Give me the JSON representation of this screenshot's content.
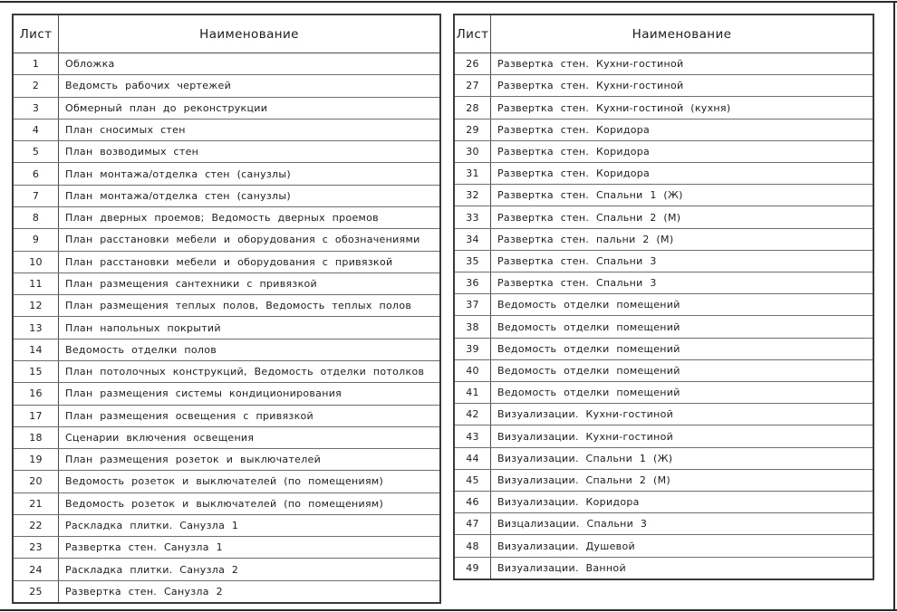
{
  "tables": [
    {
      "columns": {
        "sheet": "Лист",
        "name": "Наименование"
      },
      "rows": [
        {
          "num": "1",
          "name": "Обложка"
        },
        {
          "num": "2",
          "name": "Ведомсть рабочих чертежей"
        },
        {
          "num": "3",
          "name": "Обмерный план до реконструкции"
        },
        {
          "num": "4",
          "name": "План сносимых стен"
        },
        {
          "num": "5",
          "name": "План возводимых стен"
        },
        {
          "num": "6",
          "name": "План монтажа/отделка стен (санузлы)"
        },
        {
          "num": "7",
          "name": "План монтажа/отделка стен (санузлы)"
        },
        {
          "num": "8",
          "name": "План дверных проемов; Ведомость дверных проемов"
        },
        {
          "num": "9",
          "name": "План расстановки мебели и оборудования с обозначениями"
        },
        {
          "num": "10",
          "name": "План расстановки мебели и оборудования с привязкой"
        },
        {
          "num": "11",
          "name": "План размещения сантехники с привязкой"
        },
        {
          "num": "12",
          "name": "План размещения теплых полов, Ведомость теплых полов"
        },
        {
          "num": "13",
          "name": "План напольных покрытий"
        },
        {
          "num": "14",
          "name": "Ведомость отделки полов"
        },
        {
          "num": "15",
          "name": "План потолочных конструкций, Ведомость отделки потолков"
        },
        {
          "num": "16",
          "name": "План размещения системы кондиционирования"
        },
        {
          "num": "17",
          "name": "План размещения освещения с привязкой"
        },
        {
          "num": "18",
          "name": "Сценарии включения освещения"
        },
        {
          "num": "19",
          "name": "План размещения розеток и выключателей"
        },
        {
          "num": "20",
          "name": "Ведомость розеток и выключателей (по помещениям)"
        },
        {
          "num": "21",
          "name": "Ведомость розеток и выключателей (по помещениям)"
        },
        {
          "num": "22",
          "name": "Раскладка плитки. Санузла 1"
        },
        {
          "num": "23",
          "name": "Развертка стен. Санузла 1"
        },
        {
          "num": "24",
          "name": "Раскладка плитки. Санузла 2"
        },
        {
          "num": "25",
          "name": "Развертка стен. Санузла 2"
        }
      ]
    },
    {
      "columns": {
        "sheet": "Лист",
        "name": "Наименование"
      },
      "rows": [
        {
          "num": "26",
          "name": "Развертка стен. Кухни-гостиной"
        },
        {
          "num": "27",
          "name": "Развертка стен. Кухни-гостиной"
        },
        {
          "num": "28",
          "name": "Развертка стен. Кухни-гостиной (кухня)"
        },
        {
          "num": "29",
          "name": "Развертка стен. Коридора"
        },
        {
          "num": "30",
          "name": "Развертка стен. Коридора"
        },
        {
          "num": "31",
          "name": "Развертка стен. Коридора"
        },
        {
          "num": "32",
          "name": "Развертка стен. Спальни 1 (Ж)"
        },
        {
          "num": "33",
          "name": "Развертка стен. Спальни 2 (М)"
        },
        {
          "num": "34",
          "name": "Развертка стен. пальни 2 (М)"
        },
        {
          "num": "35",
          "name": "Развертка стен. Спальни 3"
        },
        {
          "num": "36",
          "name": "Развертка стен. Спальни 3"
        },
        {
          "num": "37",
          "name": "Ведомость отделки помещений"
        },
        {
          "num": "38",
          "name": "Ведомость отделки помещений"
        },
        {
          "num": "39",
          "name": "Ведомость отделки помещений"
        },
        {
          "num": "40",
          "name": "Ведомость отделки помещений"
        },
        {
          "num": "41",
          "name": "Ведомость отделки помещений"
        },
        {
          "num": "42",
          "name": "Визуализации. Кухни-гостиной"
        },
        {
          "num": "43",
          "name": "Визуализации. Кухни-гостиной"
        },
        {
          "num": "44",
          "name": "Визуализации. Спальни 1 (Ж)"
        },
        {
          "num": "45",
          "name": "Визуализации. Спальни 2 (М)"
        },
        {
          "num": "46",
          "name": "Визуализации. Коридора"
        },
        {
          "num": "47",
          "name": "Визцализации. Спальни 3"
        },
        {
          "num": "48",
          "name": "Визуализации. Душевой"
        },
        {
          "num": "49",
          "name": "Визуализации. Ванной"
        }
      ]
    }
  ]
}
